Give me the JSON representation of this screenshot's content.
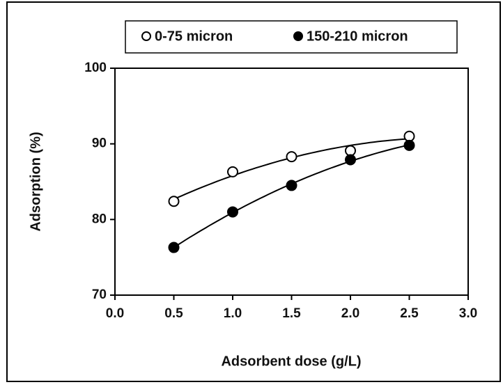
{
  "chart_data": {
    "type": "scatter",
    "x_label": "Adsorbent dose (g/L)",
    "y_label": "Adsorption (%)",
    "x": [
      0.5,
      1.0,
      1.5,
      2.0,
      2.5
    ],
    "series": [
      {
        "name": "0-75 micron",
        "color": "#000000",
        "filled": false,
        "values": [
          82.4,
          86.3,
          88.3,
          89.1,
          91.0
        ]
      },
      {
        "name": "150-210 micron",
        "color": "#000000",
        "filled": true,
        "values": [
          76.3,
          81.0,
          84.5,
          87.9,
          89.8
        ]
      }
    ],
    "xlim": [
      0,
      3
    ],
    "ylim": [
      70,
      100
    ],
    "xticks": [
      {
        "value": 0,
        "label": "0.0"
      },
      {
        "value": 0.5,
        "label": "0.5"
      },
      {
        "value": 1,
        "label": "1.0"
      },
      {
        "value": 1.5,
        "label": "1.5"
      },
      {
        "value": 2,
        "label": "2.0"
      },
      {
        "value": 2.5,
        "label": "2.5"
      },
      {
        "value": 3,
        "label": "3.0"
      }
    ],
    "yticks": [
      70,
      80,
      90,
      100
    ],
    "trendline": "polynomial-2",
    "legend": "top"
  }
}
